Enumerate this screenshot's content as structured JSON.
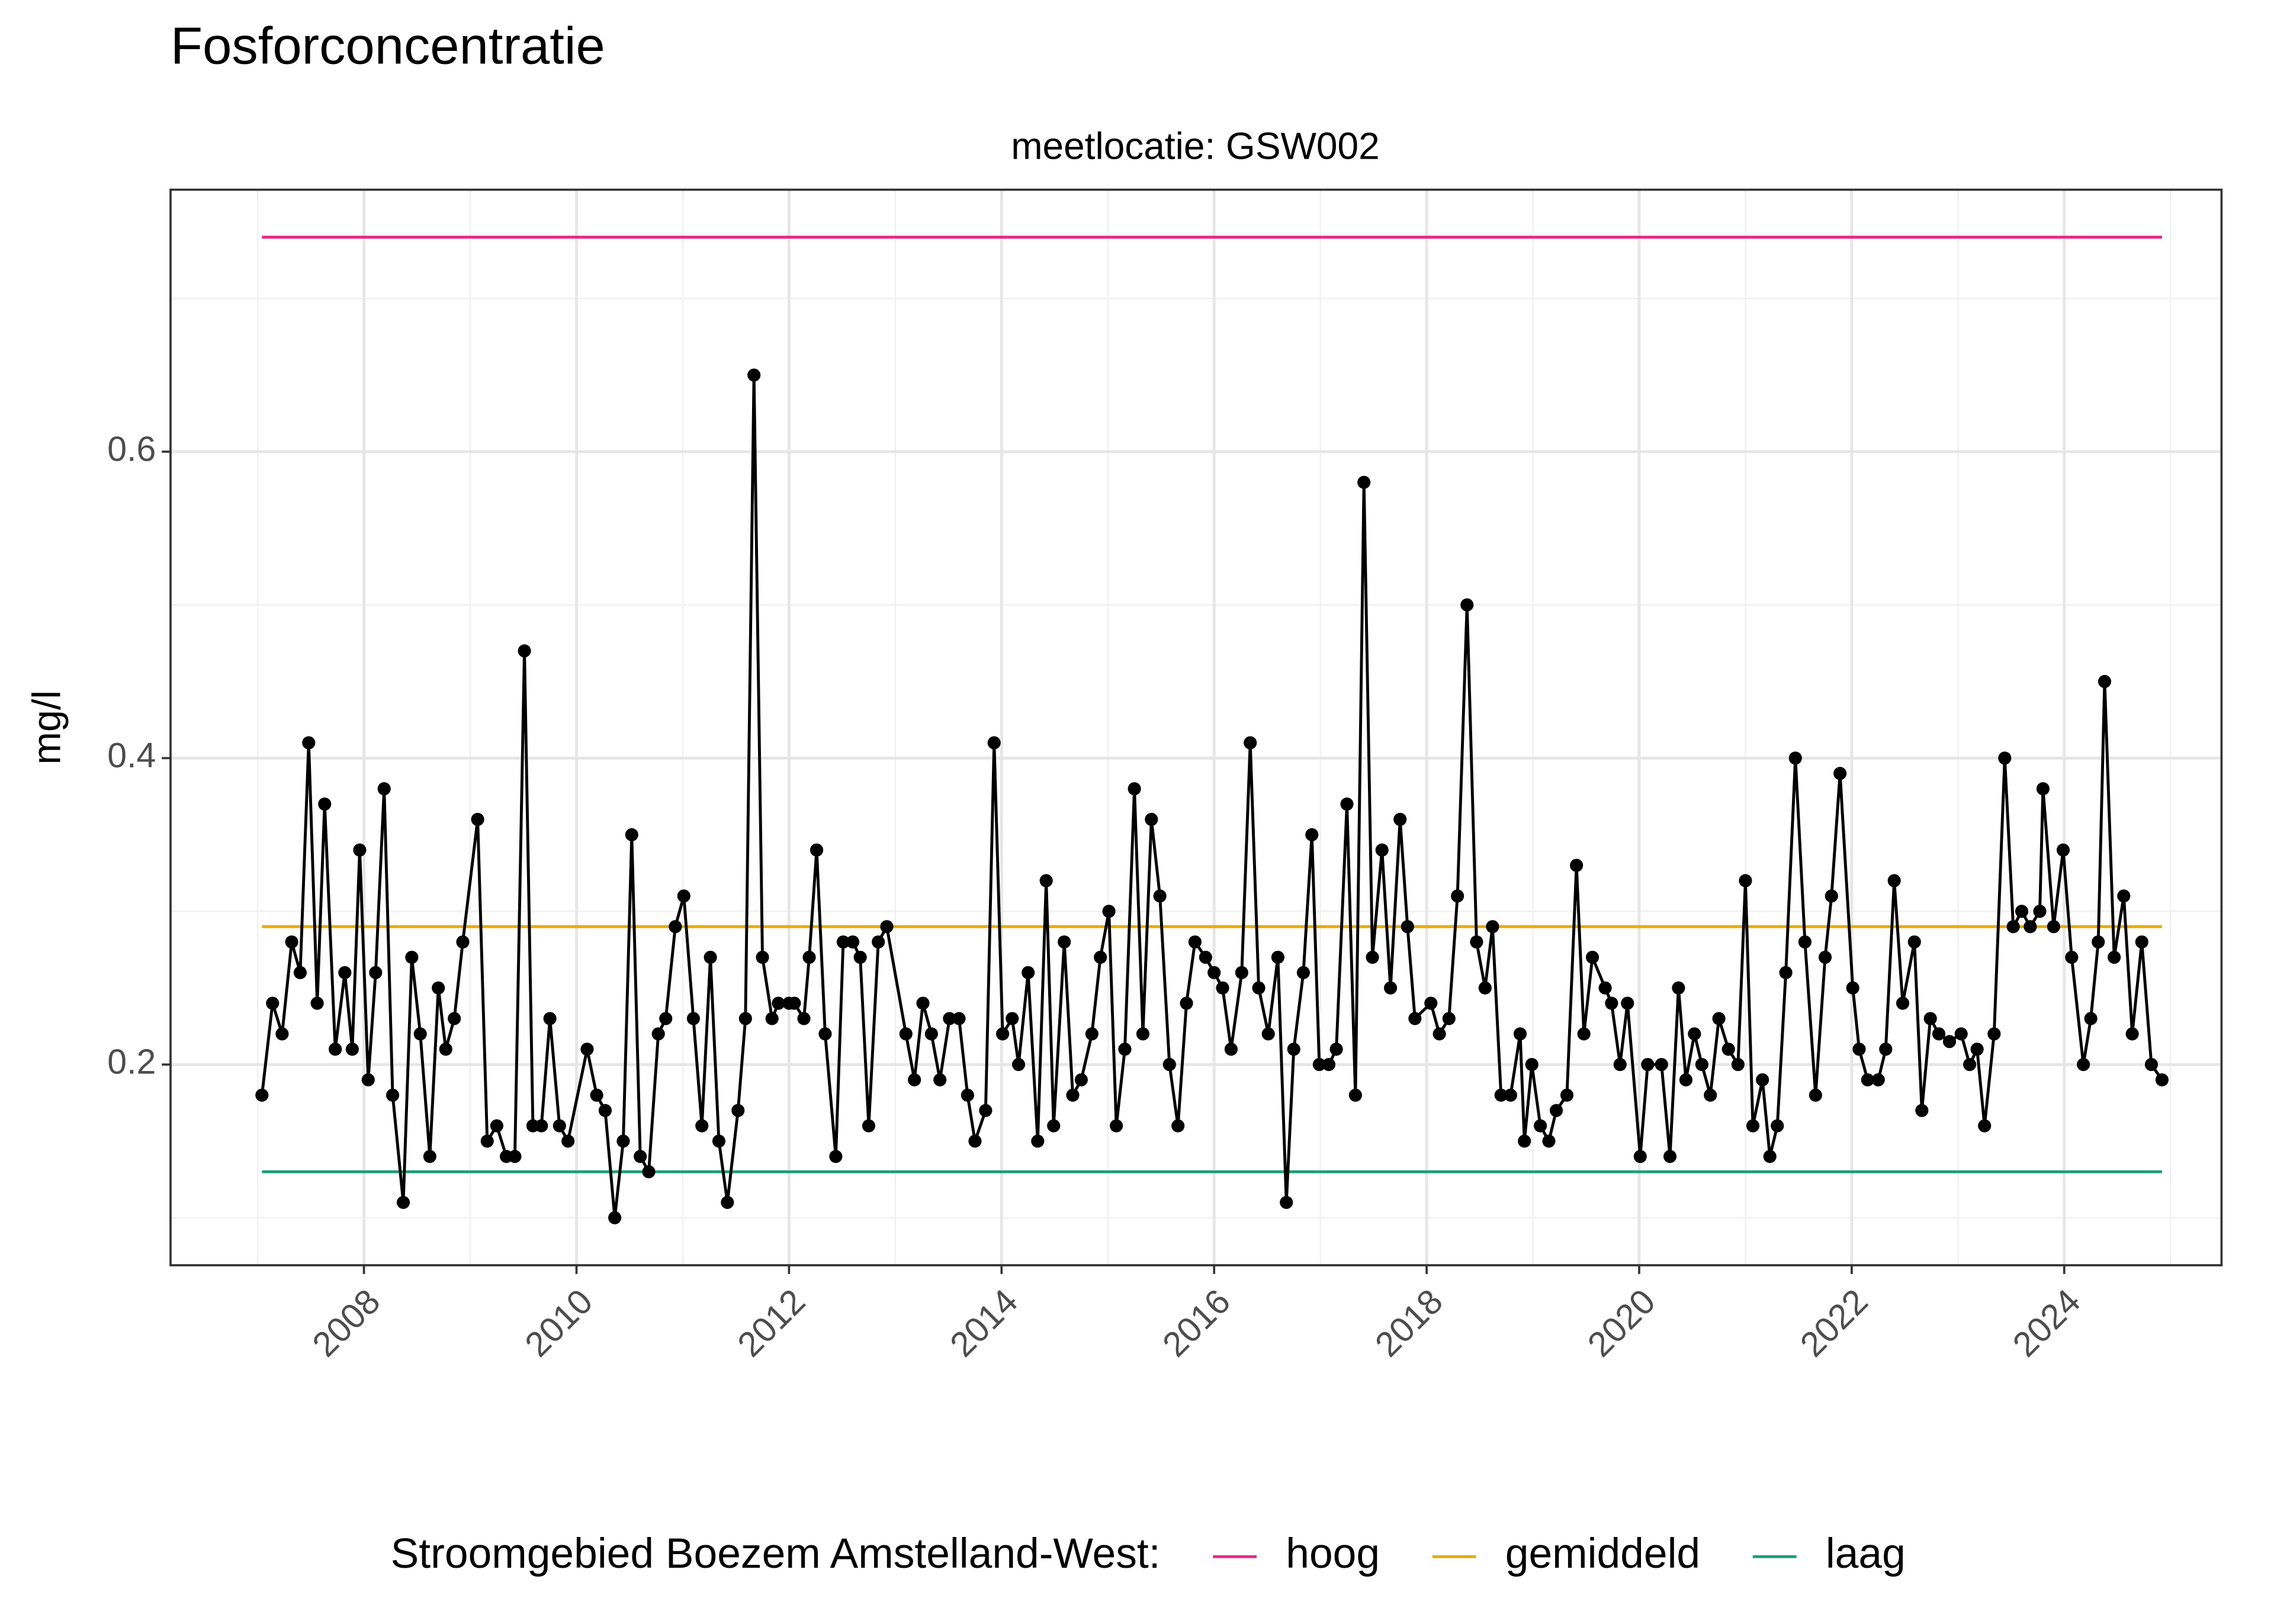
{
  "chart_data": {
    "type": "line",
    "title": "Fosforconcentratie",
    "subtitle": "meetlocatie: GSW002",
    "ylabel": "mg/l",
    "legend_title": "Stroomgebied Boezem Amstelland-West:",
    "legend_position": "bottom",
    "grid": true,
    "color": "#000000",
    "xlim": [
      2006.18,
      2025.48
    ],
    "ylim": [
      0.069,
      0.771
    ],
    "xticks": [
      2008,
      2010,
      2012,
      2014,
      2016,
      2018,
      2020,
      2022,
      2024
    ],
    "yticks": [
      0.2,
      0.4,
      0.6
    ],
    "xminor": [
      2007,
      2009,
      2011,
      2013,
      2015,
      2017,
      2019,
      2021,
      2023,
      2025
    ],
    "yminor": [
      0.1,
      0.3,
      0.5,
      0.7
    ],
    "x": [
      2007.04,
      2007.14,
      2007.23,
      2007.32,
      2007.4,
      2007.48,
      2007.56,
      2007.63,
      2007.73,
      2007.82,
      2007.89,
      2007.96,
      2008.04,
      2008.11,
      2008.19,
      2008.27,
      2008.37,
      2008.45,
      2008.53,
      2008.62,
      2008.7,
      2008.77,
      2008.85,
      2008.93,
      2009.07,
      2009.16,
      2009.25,
      2009.34,
      2009.42,
      2009.51,
      2009.59,
      2009.67,
      2009.75,
      2009.84,
      2009.92,
      2010.1,
      2010.19,
      2010.27,
      2010.36,
      2010.44,
      2010.52,
      2010.6,
      2010.68,
      2010.77,
      2010.84,
      2010.93,
      2011.01,
      2011.1,
      2011.18,
      2011.26,
      2011.34,
      2011.42,
      2011.52,
      2011.59,
      2011.67,
      2011.75,
      2011.84,
      2011.9,
      2012.0,
      2012.05,
      2012.14,
      2012.19,
      2012.26,
      2012.34,
      2012.44,
      2012.51,
      2012.6,
      2012.67,
      2012.75,
      2012.84,
      2012.92,
      2013.1,
      2013.18,
      2013.26,
      2013.34,
      2013.42,
      2013.51,
      2013.6,
      2013.68,
      2013.75,
      2013.85,
      2013.93,
      2014.01,
      2014.1,
      2014.16,
      2014.25,
      2014.34,
      2014.42,
      2014.49,
      2014.59,
      2014.67,
      2014.75,
      2014.85,
      2014.93,
      2015.01,
      2015.08,
      2015.16,
      2015.25,
      2015.33,
      2015.41,
      2015.49,
      2015.58,
      2015.66,
      2015.74,
      2015.82,
      2015.92,
      2016.0,
      2016.08,
      2016.16,
      2016.26,
      2016.34,
      2016.42,
      2016.51,
      2016.6,
      2016.68,
      2016.75,
      2016.84,
      2016.92,
      2016.99,
      2017.08,
      2017.15,
      2017.25,
      2017.33,
      2017.41,
      2017.49,
      2017.58,
      2017.66,
      2017.75,
      2017.82,
      2017.89,
      2018.04,
      2018.12,
      2018.21,
      2018.29,
      2018.38,
      2018.47,
      2018.55,
      2018.62,
      2018.7,
      2018.79,
      2018.88,
      2018.92,
      2018.99,
      2019.07,
      2019.15,
      2019.22,
      2019.32,
      2019.41,
      2019.48,
      2019.56,
      2019.68,
      2019.74,
      2019.82,
      2019.89,
      2020.01,
      2020.08,
      2020.21,
      2020.29,
      2020.37,
      2020.44,
      2020.52,
      2020.59,
      2020.67,
      2020.75,
      2020.84,
      2020.93,
      2021.0,
      2021.07,
      2021.16,
      2021.23,
      2021.3,
      2021.38,
      2021.47,
      2021.56,
      2021.66,
      2021.75,
      2021.81,
      2021.89,
      2022.01,
      2022.07,
      2022.15,
      2022.25,
      2022.32,
      2022.4,
      2022.48,
      2022.59,
      2022.66,
      2022.74,
      2022.82,
      2022.92,
      2023.03,
      2023.11,
      2023.18,
      2023.25,
      2023.34,
      2023.44,
      2023.52,
      2023.6,
      2023.68,
      2023.77,
      2023.8,
      2023.9,
      2023.99,
      2024.07,
      2024.18,
      2024.25,
      2024.32,
      2024.38,
      2024.47,
      2024.56,
      2024.64,
      2024.73,
      2024.82,
      2024.92
    ],
    "values": [
      0.18,
      0.24,
      0.22,
      0.28,
      0.26,
      0.41,
      0.24,
      0.37,
      0.21,
      0.26,
      0.21,
      0.34,
      0.19,
      0.26,
      0.38,
      0.18,
      0.11,
      0.27,
      0.22,
      0.14,
      0.25,
      0.21,
      0.23,
      0.28,
      0.36,
      0.15,
      0.16,
      0.14,
      0.14,
      0.47,
      0.16,
      0.16,
      0.23,
      0.16,
      0.15,
      0.21,
      0.18,
      0.17,
      0.1,
      0.15,
      0.35,
      0.14,
      0.13,
      0.22,
      0.23,
      0.29,
      0.31,
      0.23,
      0.16,
      0.27,
      0.15,
      0.11,
      0.17,
      0.23,
      0.65,
      0.27,
      0.23,
      0.24,
      0.24,
      0.24,
      0.23,
      0.27,
      0.34,
      0.22,
      0.14,
      0.28,
      0.28,
      0.27,
      0.16,
      0.28,
      0.29,
      0.22,
      0.19,
      0.24,
      0.22,
      0.19,
      0.23,
      0.23,
      0.18,
      0.15,
      0.17,
      0.41,
      0.22,
      0.23,
      0.2,
      0.26,
      0.15,
      0.32,
      0.16,
      0.28,
      0.18,
      0.19,
      0.22,
      0.27,
      0.3,
      0.16,
      0.21,
      0.38,
      0.22,
      0.36,
      0.31,
      0.2,
      0.16,
      0.24,
      0.28,
      0.27,
      0.26,
      0.25,
      0.21,
      0.26,
      0.41,
      0.25,
      0.22,
      0.27,
      0.11,
      0.21,
      0.26,
      0.35,
      0.2,
      0.2,
      0.21,
      0.37,
      0.18,
      0.58,
      0.27,
      0.34,
      0.25,
      0.36,
      0.29,
      0.23,
      0.24,
      0.22,
      0.23,
      0.31,
      0.5,
      0.28,
      0.25,
      0.29,
      0.18,
      0.18,
      0.22,
      0.15,
      0.2,
      0.16,
      0.15,
      0.17,
      0.18,
      0.33,
      0.22,
      0.27,
      0.25,
      0.24,
      0.2,
      0.24,
      0.14,
      0.2,
      0.2,
      0.14,
      0.25,
      0.19,
      0.22,
      0.2,
      0.18,
      0.23,
      0.21,
      0.2,
      0.32,
      0.16,
      0.19,
      0.14,
      0.16,
      0.26,
      0.4,
      0.28,
      0.18,
      0.27,
      0.31,
      0.39,
      0.25,
      0.21,
      0.19,
      0.19,
      0.21,
      0.32,
      0.24,
      0.28,
      0.17,
      0.23,
      0.22,
      0.215,
      0.22,
      0.2,
      0.21,
      0.16,
      0.22,
      0.4,
      0.29,
      0.3,
      0.29,
      0.3,
      0.38,
      0.29,
      0.34,
      0.27,
      0.2,
      0.23,
      0.28,
      0.45,
      0.27,
      0.31,
      0.22,
      0.28,
      0.2,
      0.19
    ],
    "series": [
      {
        "name": "hoog",
        "color": "#e7298a",
        "x": [
          2007.04,
          2024.92
        ],
        "values": [
          0.74,
          0.74
        ]
      },
      {
        "name": "gemiddeld",
        "color": "#e6ab02",
        "x": [
          2007.04,
          2024.92
        ],
        "values": [
          0.29,
          0.29
        ]
      },
      {
        "name": "laag",
        "color": "#1b9e77",
        "x": [
          2007.04,
          2024.92
        ],
        "values": [
          0.13,
          0.13
        ]
      }
    ]
  }
}
